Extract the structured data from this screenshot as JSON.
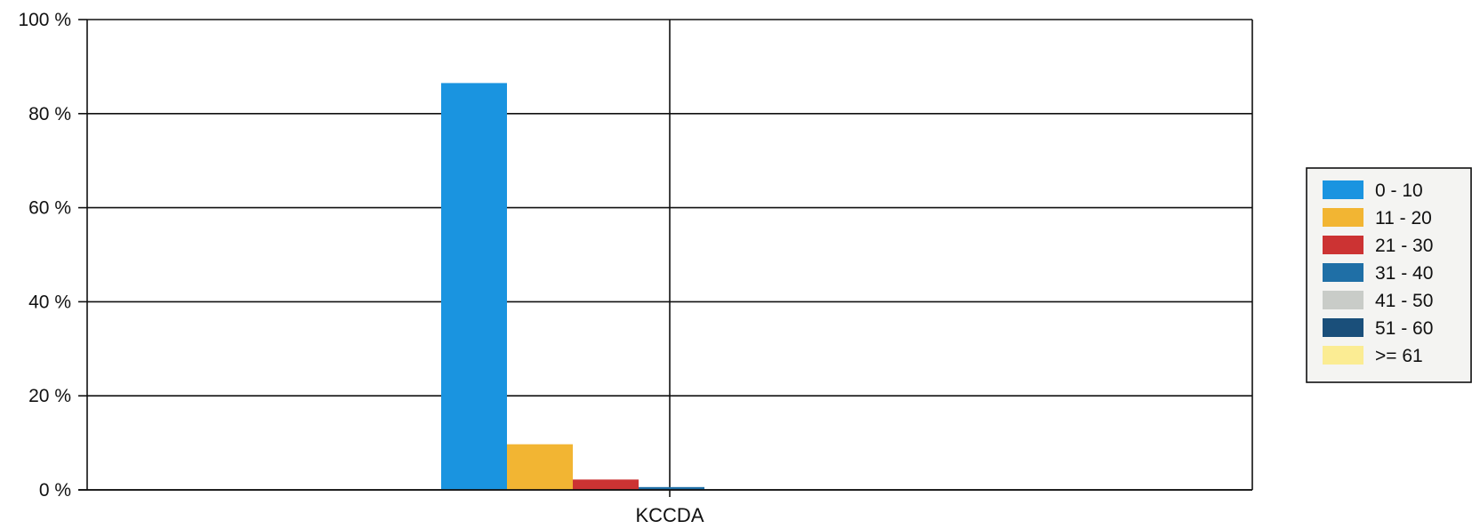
{
  "chart_data": {
    "type": "bar",
    "categories": [
      "KCCDA"
    ],
    "series": [
      {
        "name": "0 - 10",
        "values": [
          86.5
        ],
        "color": "#1a94e0"
      },
      {
        "name": "11 - 20",
        "values": [
          9.7
        ],
        "color": "#f2b533"
      },
      {
        "name": "21 - 30",
        "values": [
          2.2
        ],
        "color": "#cc3333"
      },
      {
        "name": "31 - 40",
        "values": [
          0.6
        ],
        "color": "#1f6fa6"
      },
      {
        "name": "41 - 50",
        "values": [
          0
        ],
        "color": "#c9ccc8"
      },
      {
        "name": "51 - 60",
        "values": [
          0
        ],
        "color": "#1a4f7a"
      },
      {
        "name": ">= 61",
        "values": [
          0
        ],
        "color": "#fbec93"
      }
    ],
    "ylim": [
      0,
      100
    ],
    "yticks": [
      0,
      20,
      40,
      60,
      80,
      100
    ],
    "ytick_labels": [
      "0 %",
      "20 %",
      "40 %",
      "60 %",
      "80 %",
      "100 %"
    ],
    "grid": true,
    "legend_position": "right",
    "title": "",
    "xlabel": "",
    "ylabel": ""
  }
}
